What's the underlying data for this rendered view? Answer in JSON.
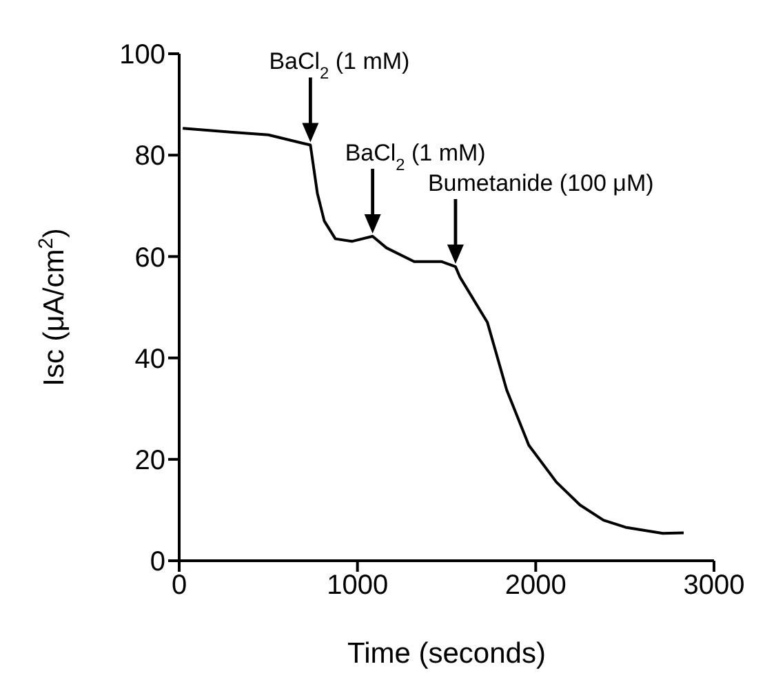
{
  "chart_data": {
    "type": "line",
    "xlabel": "Time (seconds)",
    "ylabel": "Isc (μA/cm$^{2}$)",
    "x": [
      20,
      300,
      500,
      698,
      736,
      775,
      814,
      876,
      969,
      1085,
      1163,
      1318,
      1473,
      1550,
      1574,
      1729,
      1837,
      1961,
      2116,
      2248,
      2380,
      2504,
      2713,
      2830
    ],
    "series": [
      {
        "color": "#000000",
        "values": [
          85.3,
          84.5,
          84,
          82.3,
          82,
          72.5,
          67,
          63.5,
          63,
          64,
          61.7,
          59,
          59,
          58,
          56,
          47,
          33.7,
          22.8,
          15.5,
          11,
          8,
          6.6,
          5.4,
          5.5
        ]
      }
    ],
    "xlim": [
      0,
      3000
    ],
    "xticks": [
      0,
      1000,
      2000,
      3000
    ],
    "ylim": [
      0,
      100
    ],
    "yticks": [
      0,
      20,
      40,
      60,
      80,
      100
    ],
    "grid": false,
    "legend": false,
    "marker": "none",
    "line_style": "solid",
    "annotations": [
      {
        "text": "BaCl$_{2}$ (1 mM)",
        "x": 736,
        "y": 82
      },
      {
        "text": "BaCl$_{2}$ (1 mM)",
        "x": 1085,
        "y": 64
      },
      {
        "text": "Bumetanide (100 μM)",
        "x": 1550,
        "y": 58
      }
    ]
  }
}
